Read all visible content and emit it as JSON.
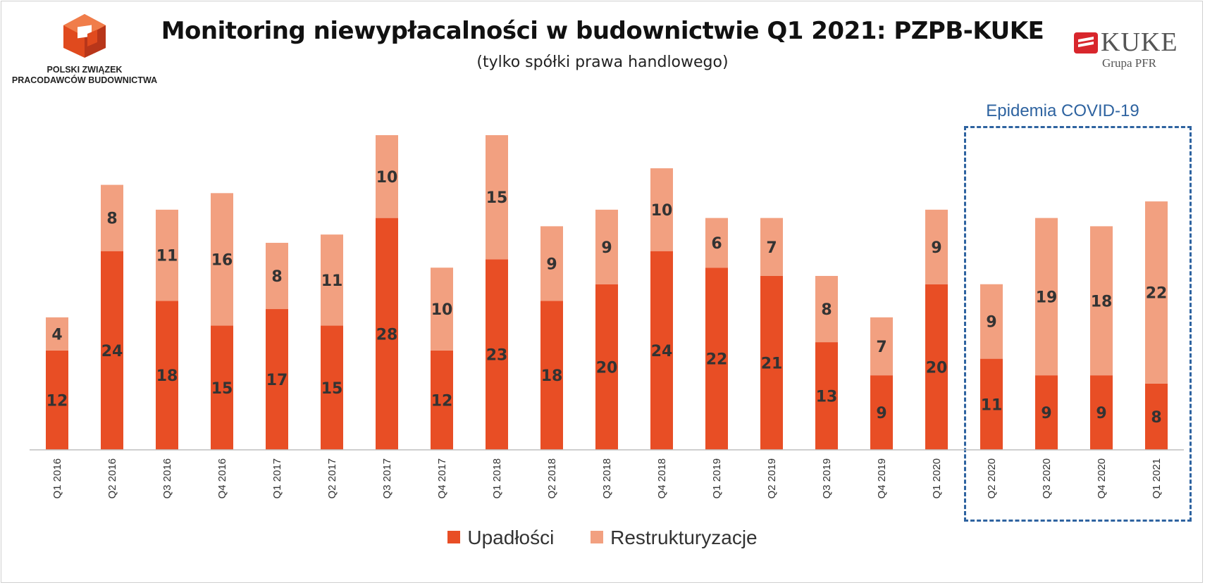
{
  "header": {
    "title": "Monitoring niewypłacalności w budownictwie Q1 2021: PZPB-KUKE",
    "subtitle": "(tylko spółki prawa handlowego)"
  },
  "logos": {
    "pzpb_line1": "POLSKI ZWIĄZEK",
    "pzpb_line2": "PRACODAWCÓW BUDOWNICTWA",
    "kuke_brand": "KUKE",
    "kuke_group": "Grupa PFR",
    "kuke_color": "#d8262c",
    "pzpb_color": "#e04a1e"
  },
  "annotation": {
    "covid_label": "Epidemia COVID-19",
    "color": "#2e63a0"
  },
  "chart_data": {
    "type": "bar",
    "stacked": true,
    "categories": [
      "Q1 2016",
      "Q2 2016",
      "Q3 2016",
      "Q4 2016",
      "Q1 2017",
      "Q2 2017",
      "Q3 2017",
      "Q4 2017",
      "Q1 2018",
      "Q2 2018",
      "Q3 2018",
      "Q4 2018",
      "Q1 2019",
      "Q2 2019",
      "Q3 2019",
      "Q4 2019",
      "Q1 2020",
      "Q2 2020",
      "Q3 2020",
      "Q4 2020",
      "Q1 2021"
    ],
    "series": [
      {
        "name": "Upadłości",
        "color": "#e84e25",
        "values": [
          12,
          24,
          18,
          15,
          17,
          15,
          28,
          12,
          23,
          18,
          20,
          24,
          22,
          21,
          13,
          9,
          20,
          11,
          9,
          9,
          8
        ]
      },
      {
        "name": "Restrukturyzacje",
        "color": "#f2a080",
        "values": [
          4,
          8,
          11,
          16,
          8,
          11,
          10,
          10,
          15,
          9,
          9,
          10,
          6,
          7,
          8,
          7,
          9,
          9,
          19,
          18,
          22
        ]
      }
    ],
    "ylim": [
      0,
      38
    ],
    "grid": false,
    "legend_position": "bottom",
    "highlight_categories": [
      "Q2 2020",
      "Q3 2020",
      "Q4 2020",
      "Q1 2021"
    ]
  }
}
